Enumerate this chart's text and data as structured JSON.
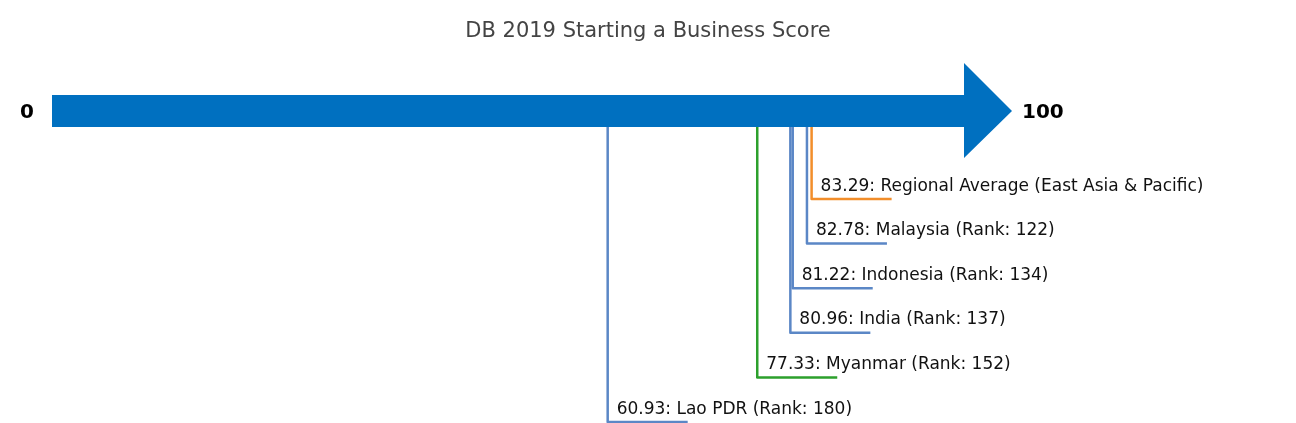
{
  "chart_data": {
    "type": "other",
    "title": "DB 2019 Starting a Business Score",
    "categories": [
      "Regional Average (East Asia & Pacific)",
      "Malaysia (Rank: 122)",
      "Indonesia (Rank: 134)",
      "India (Rank: 137)",
      "Myanmar (Rank: 152)",
      "Lao PDR (Rank: 180)"
    ],
    "values": [
      83.29,
      82.78,
      81.22,
      80.96,
      77.33,
      60.93
    ],
    "colors": [
      "#f28e2b",
      "#5b87c6",
      "#5b87c6",
      "#5b87c6",
      "#2ca02c",
      "#5b87c6"
    ],
    "value_labels": [
      "83.29:",
      "82.78:",
      "81.22:",
      "80.96:",
      "77.33:",
      "60.93:"
    ],
    "annotations": [
      "0",
      "100"
    ],
    "color": "#0070c0"
  }
}
